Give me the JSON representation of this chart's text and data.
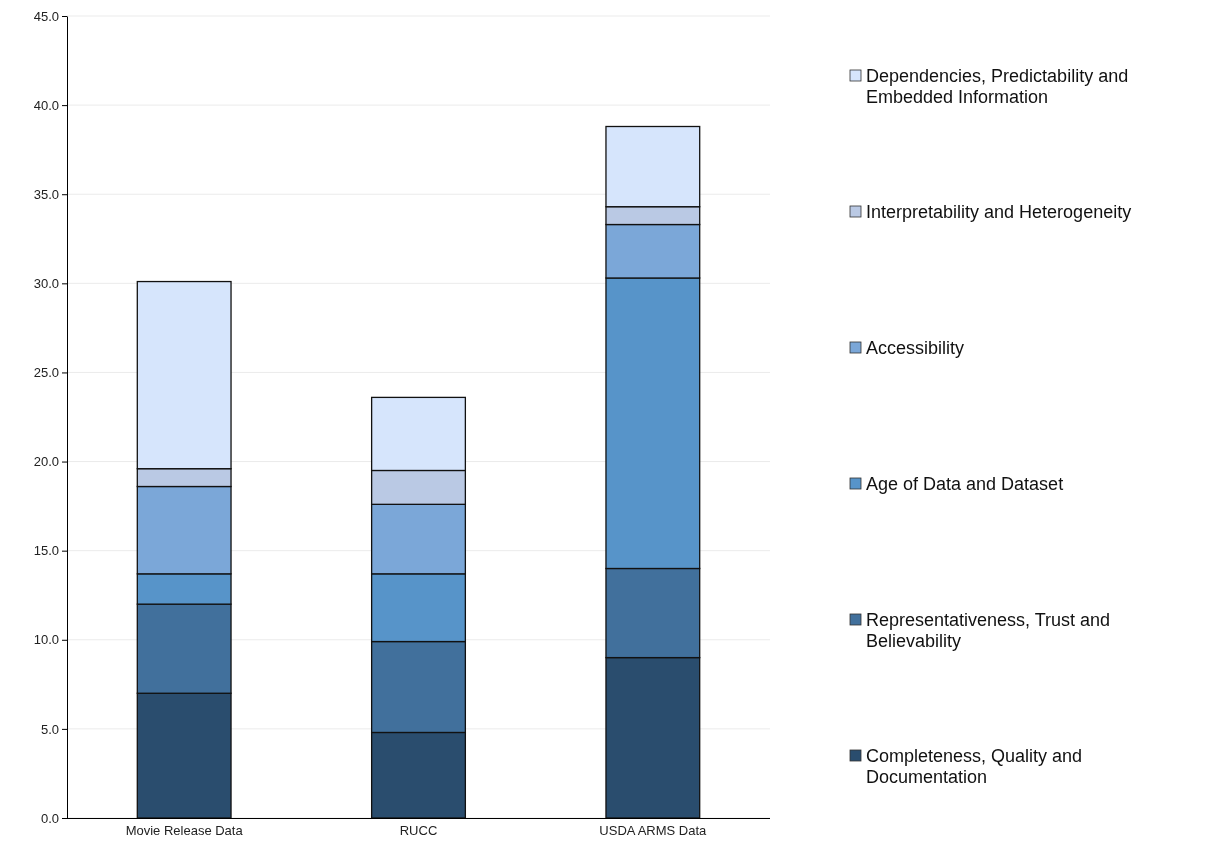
{
  "chart_data": {
    "type": "bar",
    "stacked": true,
    "categories": [
      "Movie Release Data",
      "RUCC",
      "USDA ARMS Data"
    ],
    "series": [
      {
        "name": "Completeness, Quality and Documentation",
        "color": "#2a4d6e",
        "values": [
          7.0,
          4.8,
          9.0
        ]
      },
      {
        "name": "Representativeness, Trust and Believability",
        "color": "#41709c",
        "values": [
          5.0,
          5.1,
          5.0
        ]
      },
      {
        "name": "Age of Data and Dataset",
        "color": "#5794c9",
        "values": [
          1.7,
          3.8,
          16.3
        ]
      },
      {
        "name": "Accessibility",
        "color": "#7ba7d8",
        "values": [
          4.9,
          3.9,
          3.0
        ]
      },
      {
        "name": "Interpretability and Heterogeneity",
        "color": "#bac9e4",
        "values": [
          1.0,
          1.9,
          1.0
        ]
      },
      {
        "name": "Dependencies, Predictability and Embedded Information",
        "color": "#d6e5fc",
        "values": [
          10.5,
          4.1,
          4.5
        ]
      }
    ],
    "ylim": [
      0,
      45
    ],
    "yticks": [
      {
        "value": 0,
        "label": "0.0"
      },
      {
        "value": 5,
        "label": "5.0"
      },
      {
        "value": 10,
        "label": "10.0"
      },
      {
        "value": 15,
        "label": "15.0"
      },
      {
        "value": 20,
        "label": "20.0"
      },
      {
        "value": 25,
        "label": "25.0"
      },
      {
        "value": 30,
        "label": "30.0"
      },
      {
        "value": 35,
        "label": "35.0"
      },
      {
        "value": 40,
        "label": "40.0"
      },
      {
        "value": 45,
        "label": "45.0"
      }
    ],
    "grid": "y",
    "legend": "right"
  }
}
